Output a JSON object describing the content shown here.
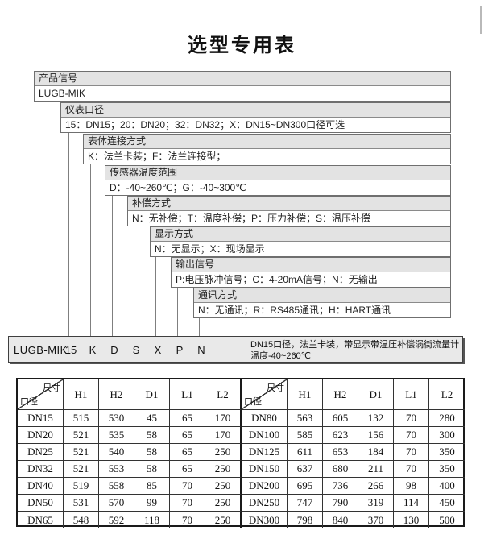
{
  "title": "选型专用表",
  "option_rows": [
    {
      "label": "产品信号",
      "options": "LUGB-MIK"
    },
    {
      "label": "仪表口径",
      "options": "15：DN15；20：DN20；32：DN32；X：DN15~DN300口径可选"
    },
    {
      "label": "表体连接方式",
      "options": "K：法兰卡装；F：法兰连接型；"
    },
    {
      "label": "传感器温度范围",
      "options": "D：-40~260℃；G：-40~300℃"
    },
    {
      "label": "补偿方式",
      "options": "N：无补偿；T：温度补偿；P：压力补偿；S：温压补偿"
    },
    {
      "label": "显示方式",
      "options": "N：无显示；X：现场显示"
    },
    {
      "label": "输出信号",
      "options": "P:电压脉冲信号；C：4-20mA信号；N：无输出"
    },
    {
      "label": "通讯方式",
      "options": "N：无通讯；R：RS485通讯；H：HART通讯"
    }
  ],
  "code_line": {
    "prefix": "LUGB-MIK",
    "codes": [
      "15",
      "K",
      "D",
      "S",
      "X",
      "P",
      "N"
    ],
    "description_line1": "DN15口径，法兰卡装，带显示带温压补偿涡街流量计",
    "description_line2": "温度-40~260℃"
  },
  "chart_data": {
    "type": "table",
    "corner_top": "尺寸",
    "corner_bottom": "口径",
    "columns": [
      "H1",
      "H2",
      "D1",
      "L1",
      "L2"
    ],
    "rows_left": [
      {
        "dn": "DN15",
        "values": [
          "515",
          "530",
          "45",
          "65",
          "170"
        ]
      },
      {
        "dn": "DN20",
        "values": [
          "521",
          "535",
          "58",
          "65",
          "170"
        ]
      },
      {
        "dn": "DN25",
        "values": [
          "521",
          "540",
          "58",
          "65",
          "250"
        ]
      },
      {
        "dn": "DN32",
        "values": [
          "521",
          "553",
          "58",
          "65",
          "250"
        ]
      },
      {
        "dn": "DN40",
        "values": [
          "519",
          "558",
          "85",
          "70",
          "250"
        ]
      },
      {
        "dn": "DN50",
        "values": [
          "531",
          "570",
          "99",
          "70",
          "250"
        ]
      },
      {
        "dn": "DN65",
        "values": [
          "548",
          "592",
          "118",
          "70",
          "250"
        ]
      }
    ],
    "rows_right": [
      {
        "dn": "DN80",
        "values": [
          "563",
          "605",
          "132",
          "70",
          "280"
        ]
      },
      {
        "dn": "DN100",
        "values": [
          "585",
          "623",
          "156",
          "70",
          "300"
        ]
      },
      {
        "dn": "DN125",
        "values": [
          "611",
          "653",
          "184",
          "70",
          "350"
        ]
      },
      {
        "dn": "DN150",
        "values": [
          "637",
          "680",
          "211",
          "70",
          "350"
        ]
      },
      {
        "dn": "DN200",
        "values": [
          "695",
          "736",
          "266",
          "98",
          "400"
        ]
      },
      {
        "dn": "DN250",
        "values": [
          "747",
          "790",
          "319",
          "114",
          "450"
        ]
      },
      {
        "dn": "DN300",
        "values": [
          "798",
          "840",
          "370",
          "130",
          "500"
        ]
      }
    ]
  }
}
